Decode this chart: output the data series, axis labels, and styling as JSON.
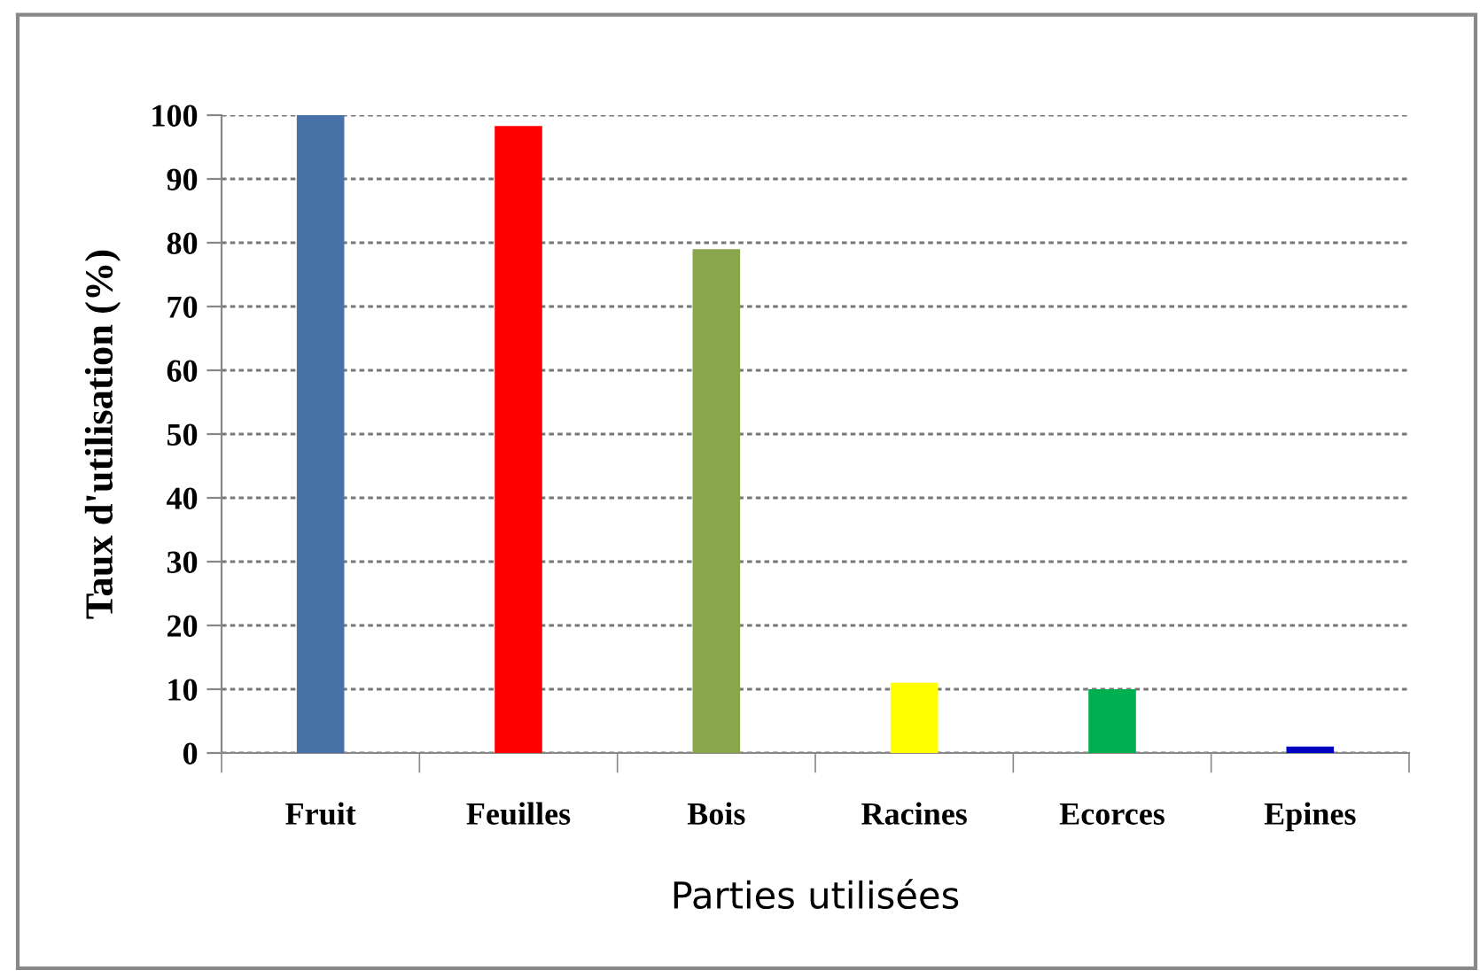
{
  "chart_data": {
    "type": "bar",
    "xlabel": "Parties utilisées",
    "ylabel": "Taux d'utilisation (%)",
    "categories": [
      "Fruit",
      "Feuilles",
      "Bois",
      "Racines",
      "Ecorces",
      "Epines"
    ],
    "values": [
      100,
      98.3,
      79,
      11,
      10,
      1
    ],
    "colors": [
      "#4672a8",
      "#ff0000",
      "#8aa64c",
      "#ffff00",
      "#00b050",
      "#0000c0"
    ],
    "ylim": [
      0,
      100
    ],
    "yticks": [
      0,
      10,
      20,
      30,
      40,
      50,
      60,
      70,
      80,
      90,
      100
    ],
    "grid": "y"
  }
}
